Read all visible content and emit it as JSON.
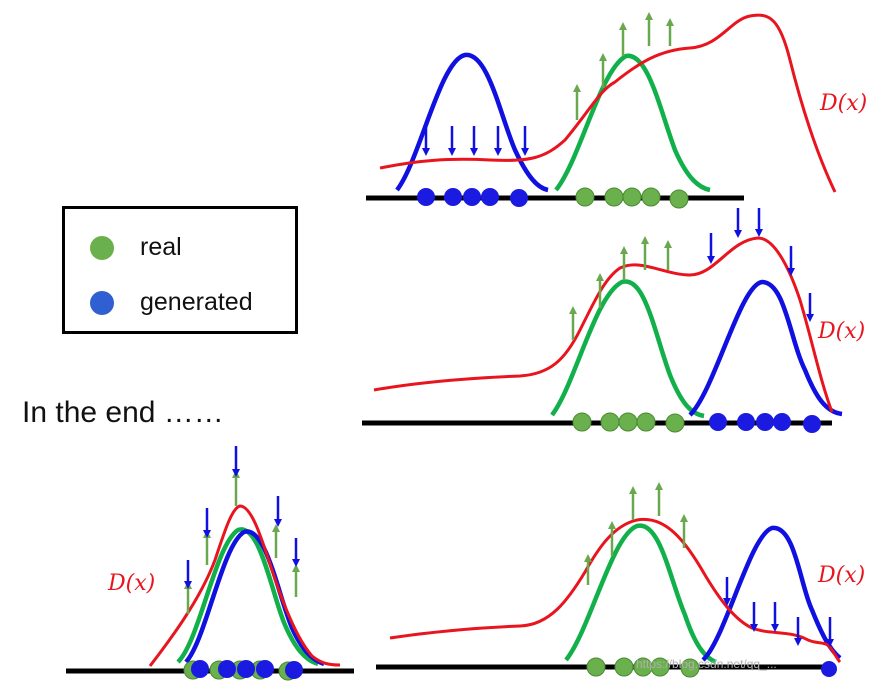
{
  "legend": {
    "items": [
      {
        "label": "real",
        "color": "#6ab04c"
      },
      {
        "label": "generated",
        "color": "#2f5fd0"
      }
    ]
  },
  "caption": "In the end ……",
  "discriminator_label": "D(x)",
  "watermark": "https://blog.csdn.net/qq_...",
  "colors": {
    "discriminator": "#e8141e",
    "real": "#12b04a",
    "generated": "#1010e0",
    "arrow_up": "#6aa84f",
    "arrow_down": "#1010e0",
    "axis": "#000000"
  },
  "panels": [
    {
      "name": "panel-top",
      "description_label": "D(x)"
    },
    {
      "name": "panel-middle",
      "description_label": "D(x)"
    },
    {
      "name": "panel-bottom-right",
      "description_label": "D(x)"
    },
    {
      "name": "panel-bottom-left",
      "description_label": "D(x)"
    }
  ]
}
